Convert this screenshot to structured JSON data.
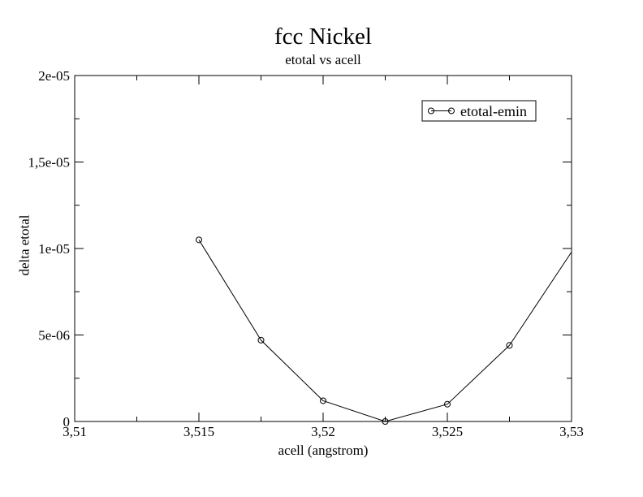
{
  "page": {
    "background_color": "#ffffff",
    "foreground_color": "#000000"
  },
  "chart_data": {
    "type": "line",
    "title": "fcc Nickel",
    "subtitle": "etotal vs acell",
    "xlabel": "acell (angstrom)",
    "ylabel": "delta etotal",
    "xlim": [
      3.51,
      3.53
    ],
    "ylim": [
      0,
      2e-05
    ],
    "grid": false,
    "frame": "box-with-inward-ticks",
    "x_major_ticks": [
      3.51,
      3.515,
      3.52,
      3.525,
      3.53
    ],
    "x_major_tick_labels": [
      "3,51",
      "3,515",
      "3,52",
      "3,525",
      "3,53"
    ],
    "x_minor_ticks": [
      3.5125,
      3.5175,
      3.5225,
      3.5275
    ],
    "y_major_ticks": [
      0,
      5e-06,
      1e-05,
      1.5e-05,
      2e-05
    ],
    "y_major_tick_labels": [
      "0",
      "5e-06",
      "1e-05",
      "1,5e-05",
      "2e-05"
    ],
    "y_minor_ticks": [
      2.5e-06,
      7.5e-06,
      1.25e-05,
      1.75e-05
    ],
    "legend": {
      "position": "upper-right-inside",
      "entries": [
        "etotal-emin"
      ]
    },
    "series": [
      {
        "name": "etotal-emin",
        "color": "#000000",
        "marker": "open-circle",
        "x": [
          3.515,
          3.5175,
          3.52,
          3.5225,
          3.525,
          3.5275,
          3.53
        ],
        "y": [
          1.05e-05,
          4.7e-06,
          1.2e-06,
          0.0,
          1e-06,
          4.4e-06,
          9.8e-06
        ],
        "last_marker_clipped": true
      }
    ]
  }
}
